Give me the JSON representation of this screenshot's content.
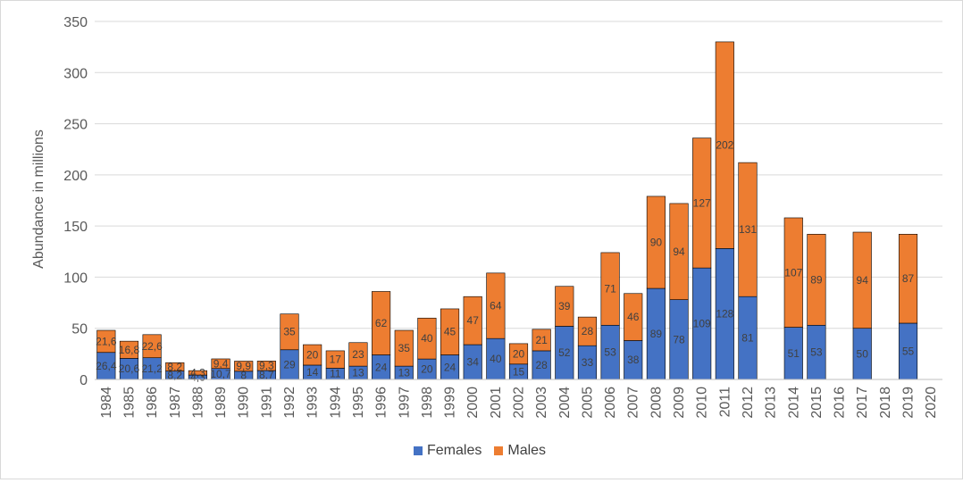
{
  "chart_data": {
    "type": "bar",
    "stacked": true,
    "ylabel": "Abundance in millions",
    "xlabel": "",
    "ylim": [
      0,
      350
    ],
    "yticks": [
      0,
      50,
      100,
      150,
      200,
      250,
      300,
      350
    ],
    "grid": true,
    "legend_position": "bottom",
    "categories": [
      "1984",
      "1985",
      "1986",
      "1987",
      "1988",
      "1989",
      "1990",
      "1991",
      "1992",
      "1993",
      "1994",
      "1995",
      "1996",
      "1997",
      "1998",
      "1999",
      "2000",
      "2001",
      "2002",
      "2003",
      "2004",
      "2005",
      "2006",
      "2007",
      "2008",
      "2009",
      "2010",
      "2011",
      "2012",
      "2013",
      "2014",
      "2015",
      "2016",
      "2017",
      "2018",
      "2019",
      "2020"
    ],
    "series": [
      {
        "name": "Females",
        "color": "#4472C4",
        "values": [
          26.4,
          20.6,
          21.2,
          8.2,
          4.3,
          10.7,
          8,
          8.7,
          29,
          14,
          11,
          13,
          24,
          13,
          20,
          24,
          34,
          40,
          15,
          28,
          52,
          33,
          53,
          38,
          89,
          78,
          109,
          128,
          81,
          null,
          51,
          53,
          null,
          50,
          null,
          55,
          null
        ],
        "labels": [
          "26,4",
          "20,6",
          "21,2",
          "8,2",
          "4,3",
          "10,7",
          "8",
          "8,7",
          "29",
          "14",
          "11",
          "13",
          "24",
          "13",
          "20",
          "24",
          "34",
          "40",
          "15",
          "28",
          "52",
          "33",
          "53",
          "38",
          "89",
          "78",
          "109",
          "128",
          "81",
          "",
          "51",
          "53",
          "",
          "50",
          "",
          "55",
          ""
        ]
      },
      {
        "name": "Males",
        "color": "#ED7D31",
        "values": [
          21.6,
          16.8,
          22.6,
          8.2,
          4.3,
          9.4,
          9.9,
          9.3,
          35,
          20,
          17,
          23,
          62,
          35,
          40,
          45,
          47,
          64,
          20,
          21,
          39,
          28,
          71,
          46,
          90,
          94,
          127,
          202,
          131,
          null,
          107,
          89,
          null,
          94,
          null,
          87,
          null
        ],
        "labels": [
          "21,6",
          "16,8",
          "22,6",
          "8,2",
          "4,3",
          "9,4",
          "9,9",
          "9,3",
          "35",
          "20",
          "17",
          "23",
          "62",
          "35",
          "40",
          "45",
          "47",
          "64",
          "20",
          "21",
          "39",
          "28",
          "71",
          "46",
          "90",
          "94",
          "127",
          "202",
          "131",
          "",
          "107",
          "89",
          "",
          "94",
          "",
          "87",
          ""
        ]
      }
    ]
  }
}
